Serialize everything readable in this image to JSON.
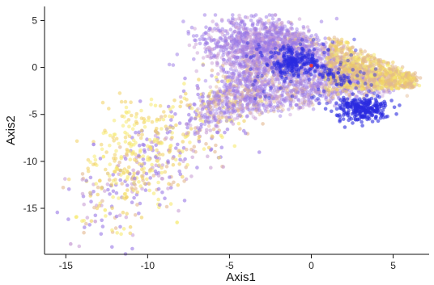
{
  "chart_data": {
    "type": "scatter",
    "title": "",
    "xlabel": "Axis1",
    "ylabel": "Axis2",
    "xlim": [
      -16.3,
      7.2
    ],
    "ylim": [
      -19.9,
      6.5
    ],
    "xticks": [
      -15,
      -10,
      -5,
      0,
      5
    ],
    "yticks": [
      5,
      0,
      -5,
      -10,
      -15
    ],
    "xtick_labels": [
      "-15",
      "-10",
      "-5",
      "0",
      "5"
    ],
    "ytick_labels": [
      "5",
      "0",
      "-5",
      "-10",
      "-15"
    ],
    "grid": false,
    "legend": "none",
    "colors": {
      "blue": "#2a2ae0",
      "violet": "#9a78e6",
      "mauve": "#c9a0d6",
      "tan": "#e2b890",
      "gold": "#f0d060",
      "yellow": "#f6ea70",
      "red": "#ff3a2a"
    },
    "point_count_estimate": 4000,
    "clusters": [
      {
        "name": "main-triangle",
        "center": [
          -2.0,
          1.0
        ],
        "spread": [
          2.2,
          2.0
        ]
      },
      {
        "name": "upper-right-lobe",
        "center": [
          3.0,
          0.5
        ],
        "spread": [
          1.6,
          1.3
        ]
      },
      {
        "name": "blue-right-cluster",
        "center": [
          3.2,
          -4.6
        ],
        "spread": [
          0.7,
          0.6
        ]
      },
      {
        "name": "blue-center-cluster",
        "center": [
          -1.0,
          0.5
        ],
        "spread": [
          0.8,
          0.8
        ]
      },
      {
        "name": "lower-left-tail",
        "center": [
          -7.0,
          -6.0
        ],
        "spread": [
          2.0,
          3.0
        ]
      }
    ],
    "outlier_points": [
      {
        "x": -14.7,
        "y": -18.8
      },
      {
        "x": -13.2,
        "y": -16.4
      },
      {
        "x": -12.6,
        "y": -15.2
      },
      {
        "x": -8.2,
        "y": -16.5
      },
      {
        "x": -12.7,
        "y": -9.5
      },
      {
        "x": -13.3,
        "y": -8.2
      }
    ]
  }
}
